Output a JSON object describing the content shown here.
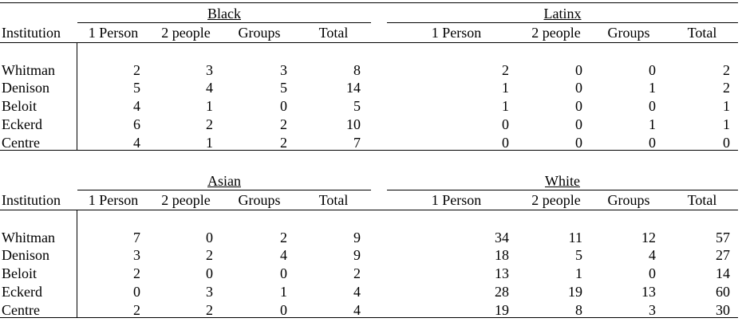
{
  "panels": [
    {
      "column_label": "Institution",
      "groups": [
        {
          "name": "Black",
          "columns": [
            "1 Person",
            "2 people",
            "Groups",
            "Total"
          ]
        },
        {
          "name": "Latinx",
          "columns": [
            "1 Person",
            "2 people",
            "Groups",
            "Total"
          ]
        }
      ],
      "rows": [
        {
          "institution": "Whitman",
          "values": [
            [
              2,
              3,
              3,
              8
            ],
            [
              2,
              0,
              0,
              2
            ]
          ]
        },
        {
          "institution": "Denison",
          "values": [
            [
              5,
              4,
              5,
              14
            ],
            [
              1,
              0,
              1,
              2
            ]
          ]
        },
        {
          "institution": "Beloit",
          "values": [
            [
              4,
              1,
              0,
              5
            ],
            [
              1,
              0,
              0,
              1
            ]
          ]
        },
        {
          "institution": "Eckerd",
          "values": [
            [
              6,
              2,
              2,
              10
            ],
            [
              0,
              0,
              1,
              1
            ]
          ]
        },
        {
          "institution": "Centre",
          "values": [
            [
              4,
              1,
              2,
              7
            ],
            [
              0,
              0,
              0,
              0
            ]
          ]
        }
      ]
    },
    {
      "column_label": "Institution",
      "groups": [
        {
          "name": "Asian",
          "columns": [
            "1 Person",
            "2 people",
            "Groups",
            "Total"
          ]
        },
        {
          "name": "White",
          "columns": [
            "1 Person",
            "2 people",
            "Groups",
            "Total"
          ]
        }
      ],
      "rows": [
        {
          "institution": "Whitman",
          "values": [
            [
              7,
              0,
              2,
              9
            ],
            [
              34,
              11,
              12,
              57
            ]
          ]
        },
        {
          "institution": "Denison",
          "values": [
            [
              3,
              2,
              4,
              9
            ],
            [
              18,
              5,
              4,
              27
            ]
          ]
        },
        {
          "institution": "Beloit",
          "values": [
            [
              2,
              0,
              0,
              2
            ],
            [
              13,
              1,
              0,
              14
            ]
          ]
        },
        {
          "institution": "Eckerd",
          "values": [
            [
              0,
              3,
              1,
              4
            ],
            [
              28,
              19,
              13,
              60
            ]
          ]
        },
        {
          "institution": "Centre",
          "values": [
            [
              2,
              2,
              0,
              4
            ],
            [
              19,
              8,
              3,
              30
            ]
          ]
        }
      ]
    }
  ]
}
